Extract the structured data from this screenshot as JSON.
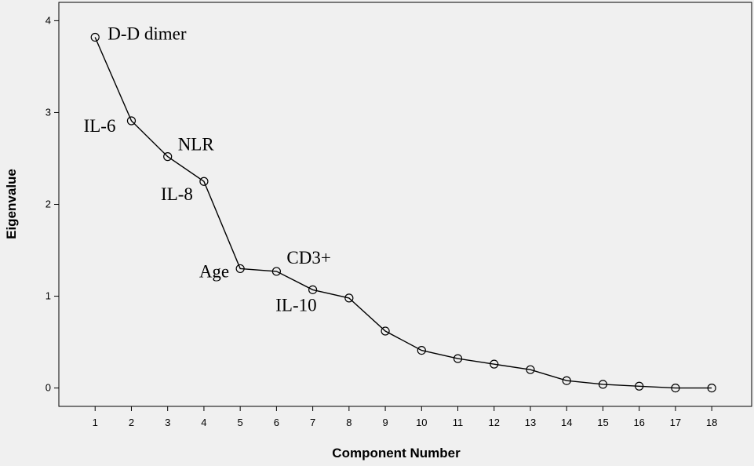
{
  "chart_data": {
    "type": "line",
    "title": "",
    "xlabel": "Component Number",
    "ylabel": "Eigenvalue",
    "x": [
      1,
      2,
      3,
      4,
      5,
      6,
      7,
      8,
      9,
      10,
      11,
      12,
      13,
      14,
      15,
      16,
      17,
      18
    ],
    "values": [
      3.82,
      2.91,
      2.52,
      2.25,
      1.3,
      1.27,
      1.07,
      0.98,
      0.62,
      0.41,
      0.32,
      0.26,
      0.2,
      0.08,
      0.04,
      0.02,
      0.0,
      0.0
    ],
    "xticks": [
      "1",
      "2",
      "3",
      "4",
      "5",
      "6",
      "7",
      "8",
      "9",
      "10",
      "11",
      "12",
      "13",
      "14",
      "15",
      "16",
      "17",
      "18"
    ],
    "yticks": [
      "0",
      "1",
      "2",
      "3",
      "4"
    ],
    "ylim": [
      -0.2,
      4.2
    ],
    "xlim": [
      0.0,
      19.1
    ],
    "grid": false,
    "marker": "open-circle",
    "annotations": [
      {
        "text": "D-D dimer",
        "x": 1
      },
      {
        "text": "IL-6",
        "x": 2
      },
      {
        "text": "NLR",
        "x": 3
      },
      {
        "text": "IL-8",
        "x": 4
      },
      {
        "text": "Age",
        "x": 5
      },
      {
        "text": "CD3+",
        "x": 6
      },
      {
        "text": "IL-10",
        "x": 7
      }
    ]
  }
}
